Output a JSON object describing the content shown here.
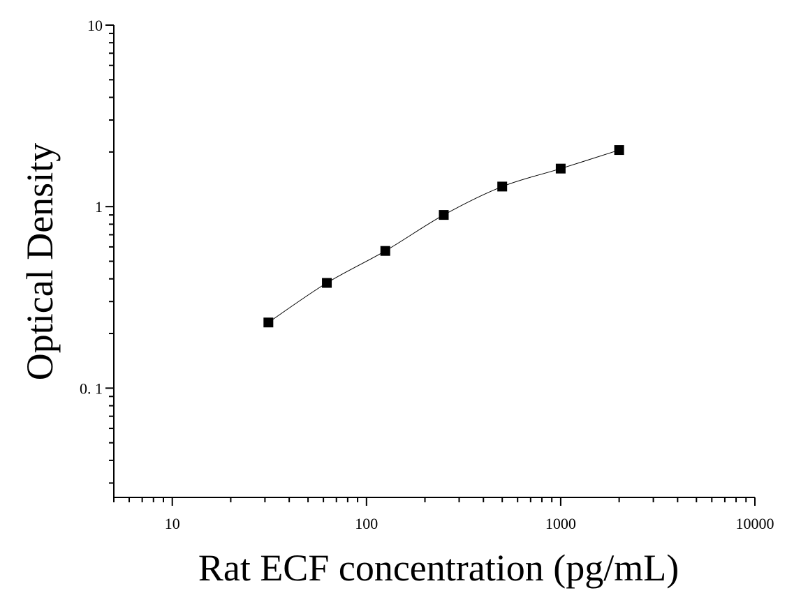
{
  "chart_data": {
    "type": "scatter",
    "title": "",
    "xlabel": "Rat ECF concentration (pg/mL)",
    "ylabel": "Optical Density",
    "x_scale": "log",
    "y_scale": "log",
    "xlim": [
      5,
      10000
    ],
    "ylim": [
      0.025,
      10
    ],
    "x_tick_labels": [
      "10",
      "100",
      "1000",
      "10000"
    ],
    "x_tick_values": [
      10,
      100,
      1000,
      10000
    ],
    "y_tick_labels": [
      "0. 1",
      "1",
      "10"
    ],
    "y_tick_values": [
      0.1,
      1,
      10
    ],
    "grid": false,
    "legend": "none",
    "series": [
      {
        "marker": "square",
        "color": "#000000",
        "fit_line": true,
        "x": [
          31.25,
          62.5,
          125,
          250,
          500,
          1000,
          2000
        ],
        "y": [
          0.23,
          0.38,
          0.57,
          0.9,
          1.29,
          1.62,
          2.05
        ]
      }
    ]
  }
}
